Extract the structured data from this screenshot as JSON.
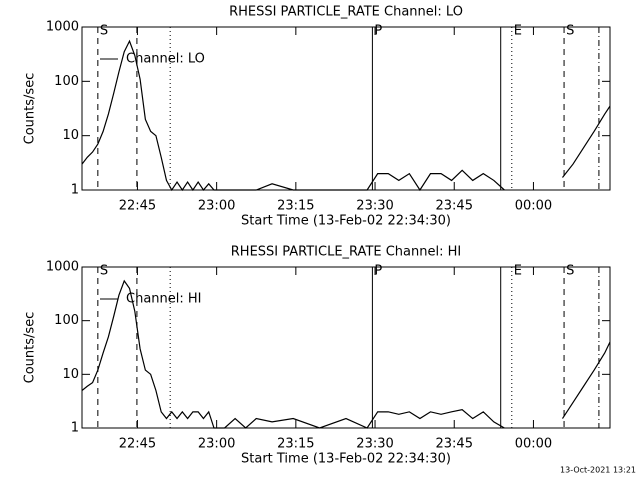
{
  "chart_data": [
    {
      "type": "line",
      "title": "RHESSI PARTICLE_RATE Channel: LO",
      "ylabel": "Counts/sec",
      "xlabel": "Start Time (13-Feb-02 22:34:30)",
      "log_y": true,
      "ylim": [
        1,
        1000
      ],
      "yticks": [
        1,
        10,
        100,
        1000
      ],
      "xlim": [
        0,
        100
      ],
      "xticks": [
        {
          "value": 10.5,
          "label": "22:45"
        },
        {
          "value": 25.5,
          "label": "23:00"
        },
        {
          "value": 40.5,
          "label": "23:15"
        },
        {
          "value": 55.5,
          "label": "23:30"
        },
        {
          "value": 70.5,
          "label": "23:45"
        },
        {
          "value": 85.5,
          "label": "00:00"
        }
      ],
      "markers": [
        {
          "x": 3.0,
          "style": "dashed",
          "label": "S"
        },
        {
          "x": 10.4,
          "style": "dashed"
        },
        {
          "x": 16.7,
          "style": "dotted"
        },
        {
          "x": 55.0,
          "style": "solid",
          "label": "P"
        },
        {
          "x": 79.3,
          "style": "solid"
        },
        {
          "x": 81.4,
          "style": "dotted",
          "label": "E"
        },
        {
          "x": 91.3,
          "style": "dashed",
          "label": "S"
        },
        {
          "x": 97.9,
          "style": "dashdot"
        }
      ],
      "x": [
        0,
        1,
        2,
        3,
        4,
        5,
        6,
        7,
        8,
        9,
        10,
        11,
        12,
        13,
        14,
        15,
        16,
        17,
        18,
        19,
        20,
        21,
        22,
        23,
        24,
        25,
        27,
        29,
        31,
        33,
        36,
        40,
        45,
        50,
        54,
        56,
        58,
        60,
        62,
        64,
        66,
        68,
        70,
        72,
        74,
        76,
        78,
        80,
        85,
        91,
        93,
        95,
        97,
        99,
        100
      ],
      "series": [
        {
          "name": "Channel: LO",
          "color": "#000000",
          "values": [
            3,
            4,
            5,
            7,
            12,
            25,
            60,
            150,
            350,
            550,
            300,
            110,
            20,
            12,
            10,
            4,
            1.5,
            1,
            1.4,
            1,
            1.4,
            1,
            1.4,
            1,
            1.3,
            1,
            1,
            1,
            1,
            1,
            1.3,
            1,
            1,
            1,
            1,
            2,
            2,
            1.5,
            2,
            1,
            2,
            2,
            1.5,
            2.3,
            1.5,
            2,
            1.5,
            1,
            null,
            1.7,
            3,
            6,
            12,
            25,
            35
          ]
        }
      ]
    },
    {
      "type": "line",
      "title": "RHESSI PARTICLE_RATE Channel: HI",
      "ylabel": "Counts/sec",
      "xlabel": "Start Time (13-Feb-02 22:34:30)",
      "log_y": true,
      "ylim": [
        1,
        1000
      ],
      "yticks": [
        1,
        10,
        100,
        1000
      ],
      "xlim": [
        0,
        100
      ],
      "xticks": [
        {
          "value": 10.5,
          "label": "22:45"
        },
        {
          "value": 25.5,
          "label": "23:00"
        },
        {
          "value": 40.5,
          "label": "23:15"
        },
        {
          "value": 55.5,
          "label": "23:30"
        },
        {
          "value": 70.5,
          "label": "23:45"
        },
        {
          "value": 85.5,
          "label": "00:00"
        }
      ],
      "markers": [
        {
          "x": 3.0,
          "style": "dashed",
          "label": "S"
        },
        {
          "x": 10.4,
          "style": "dashed"
        },
        {
          "x": 16.7,
          "style": "dotted"
        },
        {
          "x": 55.0,
          "style": "solid",
          "label": "P"
        },
        {
          "x": 79.3,
          "style": "solid"
        },
        {
          "x": 81.4,
          "style": "dotted",
          "label": "E"
        },
        {
          "x": 91.3,
          "style": "dashed",
          "label": "S"
        },
        {
          "x": 97.9,
          "style": "dashdot"
        }
      ],
      "x": [
        0,
        1,
        2,
        3,
        4,
        5,
        6,
        7,
        8,
        9,
        10,
        11,
        12,
        13,
        14,
        15,
        16,
        17,
        18,
        19,
        20,
        21,
        22,
        23,
        24,
        25,
        27,
        29,
        31,
        33,
        36,
        40,
        45,
        50,
        54,
        56,
        58,
        60,
        62,
        64,
        66,
        68,
        70,
        72,
        74,
        76,
        78,
        80,
        85,
        91,
        93,
        95,
        97,
        99,
        100
      ],
      "series": [
        {
          "name": "Channel: HI",
          "color": "#000000",
          "values": [
            5,
            6,
            7,
            12,
            25,
            50,
            120,
            300,
            550,
            400,
            150,
            30,
            12,
            10,
            5,
            2,
            1.5,
            2,
            1.5,
            2,
            1.5,
            2,
            2,
            1.5,
            2,
            1,
            1,
            1.5,
            1,
            1.5,
            1.3,
            1.5,
            1,
            1.5,
            1,
            2,
            2,
            1.8,
            2,
            1.5,
            2,
            1.8,
            2,
            2.2,
            1.5,
            2,
            1.3,
            1,
            null,
            1.5,
            3,
            6,
            12,
            25,
            40
          ]
        }
      ]
    }
  ],
  "footer": "13-Oct-2021 13:21"
}
